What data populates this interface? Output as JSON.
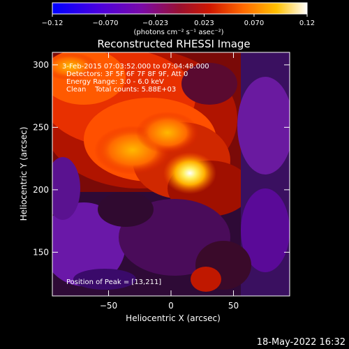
{
  "chart_data": {
    "type": "heatmap",
    "title": "Reconstructed RHESSI Image",
    "xlabel": "Heliocentric X (arcsec)",
    "ylabel": "Heliocentric Y (arcsec)",
    "xlim": [
      -95,
      95
    ],
    "ylim": [
      115,
      310
    ],
    "x_ticks": [
      -50,
      0,
      50
    ],
    "y_ticks": [
      150,
      200,
      250,
      300
    ],
    "colorbar": {
      "range": [
        -0.12,
        0.12
      ],
      "tick_values": [
        -0.12,
        -0.07,
        -0.023,
        0.023,
        0.07,
        0.12
      ],
      "tick_labels": [
        "−0.12",
        "−0.070",
        "−0.023",
        "0.023",
        "0.070",
        "0.12"
      ],
      "unit_label": "(photons cm⁻² s⁻¹ asec⁻²)",
      "colors": [
        "#0000ff",
        "#5a00d8",
        "#8a1c9a",
        "#b01010",
        "#e53000",
        "#ff8a00",
        "#ffd000",
        "#ffffff"
      ]
    },
    "annotations": [
      "3-Feb-2015 07:03:52.000 to 07:04:48.000",
      "Detectors: 3F 5F 6F 7F 8F 9F, Att 0",
      "Energy Range: 3.0 - 6.0 keV",
      "Clean    Total counts: 5.88E+03"
    ],
    "peak_label": "Position of Peak = [13,211]",
    "peak": {
      "x": 13,
      "y": 211
    },
    "grid": false
  },
  "footer": {
    "timestamp": "18-May-2022 16:32"
  }
}
